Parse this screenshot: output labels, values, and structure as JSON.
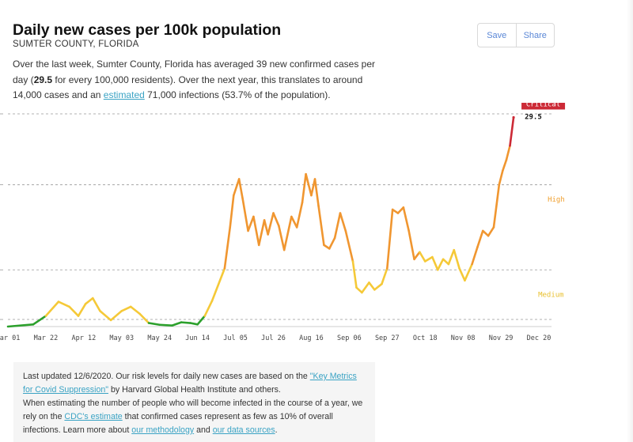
{
  "header": {
    "title": "Daily new cases per 100k population",
    "subtitle": "SUMTER COUNTY, FLORIDA",
    "save_label": "Save",
    "share_label": "Share"
  },
  "summary": {
    "part1": "Over the last week, Sumter County, Florida has averaged 39 new confirmed cases per day (",
    "value": "29.5",
    "part2": " for every 100,000 residents). Over the next year, this translates to around 14,000 cases and an ",
    "link": "estimated",
    "part3": " 71,000 infections (53.7% of the population)."
  },
  "chart_data": {
    "type": "line",
    "title": "Daily new cases per 100k population",
    "x_tick_labels": [
      "Mar 01",
      "Mar 22",
      "Apr 12",
      "May 03",
      "May 24",
      "Jun 14",
      "Jul 05",
      "Jul 26",
      "Aug 16",
      "Sep 06",
      "Sep 27",
      "Oct 18",
      "Nov 08",
      "Nov 29",
      "Dec 20"
    ],
    "x_range": [
      "2020-03-01",
      "2020-12-27"
    ],
    "y_range": [
      0,
      30
    ],
    "grid": true,
    "grid_lines_y": [
      1,
      8,
      20,
      30
    ],
    "thresholds": [
      1,
      10,
      25
    ],
    "level_labels": [
      {
        "text": "Critical",
        "color": "#cc2a36",
        "style": "badge"
      },
      {
        "text": "High",
        "color": "#f0a030",
        "style": "text"
      },
      {
        "text": "Medium",
        "color": "#e8c030",
        "style": "text"
      }
    ],
    "colors": {
      "low": "#2ca02c",
      "medium": "#f5c938",
      "high": "#f09630",
      "critical": "#cc2a36"
    },
    "last_value_label": "29.5",
    "series": [
      {
        "values": [
          [
            "2020-03-01",
            0.0
          ],
          [
            "2020-03-15",
            0.3
          ],
          [
            "2020-03-22",
            1.5
          ],
          [
            "2020-03-29",
            3.5
          ],
          [
            "2020-04-04",
            2.8
          ],
          [
            "2020-04-09",
            1.5
          ],
          [
            "2020-04-13",
            3.2
          ],
          [
            "2020-04-17",
            4.0
          ],
          [
            "2020-04-21",
            2.2
          ],
          [
            "2020-04-27",
            0.9
          ],
          [
            "2020-05-03",
            2.2
          ],
          [
            "2020-05-08",
            2.8
          ],
          [
            "2020-05-13",
            1.8
          ],
          [
            "2020-05-18",
            0.5
          ],
          [
            "2020-05-24",
            0.25
          ],
          [
            "2020-05-31",
            0.15
          ],
          [
            "2020-06-05",
            0.6
          ],
          [
            "2020-06-10",
            0.5
          ],
          [
            "2020-06-14",
            0.3
          ],
          [
            "2020-06-18",
            1.5
          ],
          [
            "2020-06-22",
            3.6
          ],
          [
            "2020-06-29",
            8.2
          ],
          [
            "2020-07-02",
            14.0
          ],
          [
            "2020-07-04",
            18.5
          ],
          [
            "2020-07-07",
            20.8
          ],
          [
            "2020-07-09",
            18.0
          ],
          [
            "2020-07-12",
            13.5
          ],
          [
            "2020-07-15",
            15.5
          ],
          [
            "2020-07-18",
            11.5
          ],
          [
            "2020-07-21",
            15.0
          ],
          [
            "2020-07-23",
            13.0
          ],
          [
            "2020-07-26",
            16.0
          ],
          [
            "2020-07-29",
            14.2
          ],
          [
            "2020-08-01",
            10.8
          ],
          [
            "2020-08-05",
            15.5
          ],
          [
            "2020-08-08",
            14.0
          ],
          [
            "2020-08-11",
            17.5
          ],
          [
            "2020-08-13",
            21.5
          ],
          [
            "2020-08-16",
            18.5
          ],
          [
            "2020-08-18",
            20.8
          ],
          [
            "2020-08-20",
            17.0
          ],
          [
            "2020-08-23",
            11.5
          ],
          [
            "2020-08-26",
            11.0
          ],
          [
            "2020-08-29",
            12.5
          ],
          [
            "2020-09-01",
            16.0
          ],
          [
            "2020-09-04",
            13.5
          ],
          [
            "2020-09-08",
            9.2
          ],
          [
            "2020-09-10",
            5.5
          ],
          [
            "2020-09-13",
            4.8
          ],
          [
            "2020-09-17",
            6.2
          ],
          [
            "2020-09-20",
            5.2
          ],
          [
            "2020-09-24",
            6.0
          ],
          [
            "2020-09-27",
            8.2
          ],
          [
            "2020-09-30",
            16.5
          ],
          [
            "2020-10-03",
            16.0
          ],
          [
            "2020-10-06",
            16.8
          ],
          [
            "2020-10-09",
            13.5
          ],
          [
            "2020-10-12",
            9.5
          ],
          [
            "2020-10-15",
            10.5
          ],
          [
            "2020-10-18",
            9.2
          ],
          [
            "2020-10-22",
            9.8
          ],
          [
            "2020-10-25",
            8.0
          ],
          [
            "2020-10-28",
            9.5
          ],
          [
            "2020-10-31",
            8.8
          ],
          [
            "2020-11-03",
            10.8
          ],
          [
            "2020-11-06",
            8.2
          ],
          [
            "2020-11-09",
            6.5
          ],
          [
            "2020-11-13",
            8.8
          ],
          [
            "2020-11-16",
            11.2
          ],
          [
            "2020-11-19",
            13.5
          ],
          [
            "2020-11-22",
            12.8
          ],
          [
            "2020-11-25",
            14.0
          ],
          [
            "2020-11-28",
            20.0
          ],
          [
            "2020-11-30",
            22.0
          ],
          [
            "2020-12-02",
            23.5
          ],
          [
            "2020-12-04",
            25.5
          ],
          [
            "2020-12-06",
            29.5
          ]
        ]
      }
    ]
  },
  "note": {
    "p1_before": "Last updated 12/6/2020. Our risk levels for daily new cases are based on the ",
    "p1_link": "\"Key Metrics for Covid Suppression\"",
    "p1_after": " by Harvard Global Health Institute and others.",
    "p2_before": "When estimating the number of people who will become infected in the course of a year, we rely on the ",
    "p2_link1": "CDC's estimate",
    "p2_middle": " that confirmed cases represent as few as 10% of overall infections. Learn more about ",
    "p2_link2": "our methodology",
    "p2_and": " and ",
    "p2_link3": "our data sources",
    "p2_end": "."
  }
}
